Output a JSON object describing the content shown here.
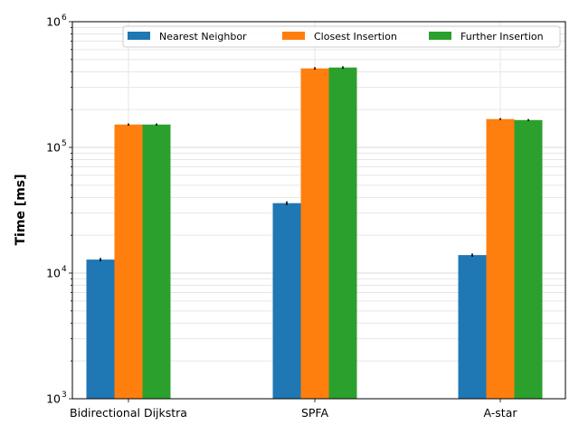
{
  "chart_data": {
    "type": "bar",
    "ylabel": "Time [ms]",
    "yscale": "log",
    "ylim": [
      1000,
      1000000
    ],
    "grid": true,
    "legend_position": "top-right",
    "categories": [
      "Bidirectional Dijkstra",
      "SPFA",
      "A-star"
    ],
    "series": [
      {
        "name": "Nearest Neighbor",
        "color": "#1f77b4",
        "values": [
          12800,
          36000,
          13900
        ],
        "errors": [
          400,
          1200,
          400
        ]
      },
      {
        "name": "Closest Insertion",
        "color": "#ff7f0e",
        "values": [
          152000,
          425000,
          168000
        ],
        "errors": [
          3000,
          10000,
          3000
        ]
      },
      {
        "name": "Further Insertion",
        "color": "#2ca02c",
        "values": [
          152000,
          432000,
          165000
        ],
        "errors": [
          3000,
          10000,
          3000
        ]
      }
    ],
    "y_ticks": [
      {
        "value": 1000,
        "base": "10",
        "exp": "3"
      },
      {
        "value": 10000,
        "base": "10",
        "exp": "4"
      },
      {
        "value": 100000,
        "base": "10",
        "exp": "5"
      },
      {
        "value": 1000000,
        "base": "10",
        "exp": "6"
      }
    ]
  }
}
